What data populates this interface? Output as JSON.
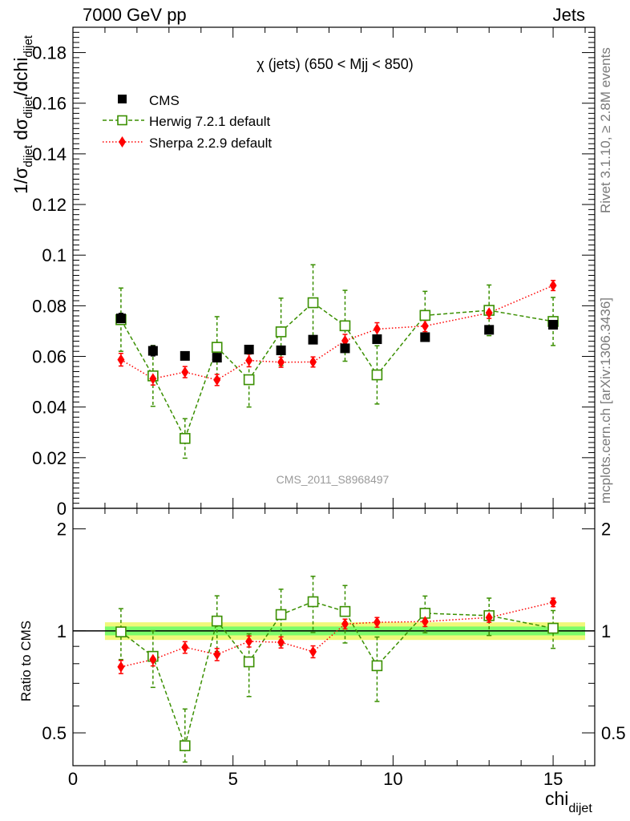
{
  "header": {
    "left": "7000 GeV pp",
    "right": "Jets"
  },
  "side_labels": {
    "top": "Rivet 3.1.10, ≥ 2.8M events",
    "bottom": "mcplots.cern.ch [arXiv:1306.3436]"
  },
  "watermark": "CMS_2011_S8968497",
  "colors": {
    "cms": "#000000",
    "herwig": "#3a8f00",
    "sherpa": "#ff0000",
    "band_inner": "#7cfc6a",
    "band_outer": "#f0f87a"
  },
  "chart_data": [
    {
      "type": "scatter",
      "panel": "main",
      "title": "χ (jets) (650 < Mjj <  850)",
      "ylabel_parts": {
        "a": "1/σ",
        "a_sub": "dijet",
        "b": " dσ",
        "b_sub": "dijet",
        "c": "/dchi",
        "c_sub": "dijet"
      },
      "xlabel_parts": {
        "main": "chi",
        "sub": "dijet"
      },
      "xlim": [
        0,
        16.3
      ],
      "ylim": [
        0,
        0.19
      ],
      "yticks": [
        "0",
        "0.02",
        "0.04",
        "0.06",
        "0.08",
        "0.1",
        "0.12",
        "0.14",
        "0.16",
        "0.18"
      ],
      "xticks": [
        "0",
        "5",
        "10",
        "15"
      ],
      "legend_position": "top-left",
      "series": [
        {
          "name": "CMS",
          "marker": "filled-square",
          "x": [
            1.5,
            2.5,
            3.5,
            4.5,
            5.5,
            6.5,
            7.5,
            8.5,
            9.5,
            11,
            13,
            15
          ],
          "y": [
            0.075,
            0.0622,
            0.0602,
            0.0595,
            0.0627,
            0.0624,
            0.0666,
            0.0632,
            0.0668,
            0.0676,
            0.0705,
            0.0725
          ],
          "err": [
            0.002,
            0.002,
            0.0015,
            0.0015,
            0.0015,
            0.0015,
            0.0015,
            0.0015,
            0.0015,
            0.0015,
            0.0015,
            0.0015
          ]
        },
        {
          "name": "Herwig 7.2.1 default",
          "marker": "open-square",
          "line": "dashed",
          "x": [
            1.5,
            2.5,
            3.5,
            4.5,
            5.5,
            6.5,
            7.5,
            8.5,
            9.5,
            11,
            13,
            15
          ],
          "y": [
            0.0745,
            0.0523,
            0.0276,
            0.0636,
            0.0508,
            0.0697,
            0.0812,
            0.0721,
            0.0527,
            0.0762,
            0.0782,
            0.0738
          ],
          "err": [
            0.0125,
            0.012,
            0.0078,
            0.0121,
            0.0108,
            0.0133,
            0.015,
            0.014,
            0.0115,
            0.0095,
            0.01,
            0.0095
          ]
        },
        {
          "name": "Sherpa 2.2.9 default",
          "marker": "filled-diamond",
          "line": "dotted",
          "x": [
            1.5,
            2.5,
            3.5,
            4.5,
            5.5,
            6.5,
            7.5,
            8.5,
            9.5,
            11,
            13,
            15
          ],
          "y": [
            0.0587,
            0.0512,
            0.0538,
            0.0507,
            0.0584,
            0.0577,
            0.0578,
            0.0662,
            0.0708,
            0.072,
            0.0772,
            0.088
          ],
          "err": [
            0.0025,
            0.0025,
            0.0022,
            0.0022,
            0.0025,
            0.002,
            0.002,
            0.0025,
            0.0025,
            0.0022,
            0.0022,
            0.002
          ]
        }
      ]
    },
    {
      "type": "scatter",
      "panel": "ratio",
      "ylabel": "Ratio to CMS",
      "ylim": [
        0.4,
        2.3
      ],
      "yscale": "log",
      "yticks": [
        "0.5",
        "1",
        "2"
      ],
      "band": {
        "x": [
          1,
          16
        ],
        "inner": [
          0.97,
          1.03
        ],
        "outer": [
          0.94,
          1.06
        ]
      },
      "reference_line": 1,
      "series": [
        {
          "name": "Herwig 7.2.1 default",
          "x": [
            1.5,
            2.5,
            3.5,
            4.5,
            5.5,
            6.5,
            7.5,
            8.5,
            9.5,
            11,
            13,
            15
          ],
          "y": [
            0.993,
            0.841,
            0.458,
            1.069,
            0.81,
            1.117,
            1.219,
            1.141,
            0.789,
            1.127,
            1.109,
            1.018
          ],
          "err": [
            0.17,
            0.16,
            0.13,
            0.2,
            0.17,
            0.21,
            0.23,
            0.22,
            0.17,
            0.14,
            0.14,
            0.13
          ]
        },
        {
          "name": "Sherpa 2.2.9 default",
          "x": [
            1.5,
            2.5,
            3.5,
            4.5,
            5.5,
            6.5,
            7.5,
            8.5,
            9.5,
            11,
            13,
            15
          ],
          "y": [
            0.783,
            0.823,
            0.894,
            0.852,
            0.931,
            0.925,
            0.868,
            1.048,
            1.06,
            1.065,
            1.095,
            1.214
          ],
          "err": [
            0.035,
            0.035,
            0.035,
            0.035,
            0.035,
            0.035,
            0.035,
            0.035,
            0.035,
            0.035,
            0.035,
            0.035
          ]
        }
      ]
    }
  ]
}
